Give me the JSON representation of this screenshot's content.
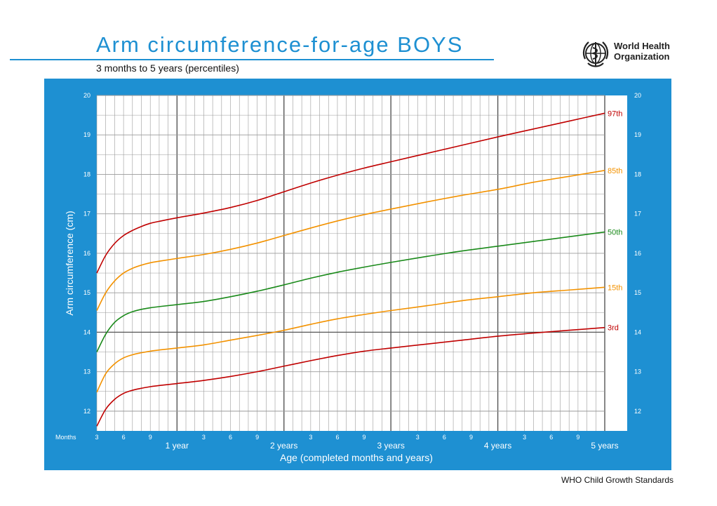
{
  "header": {
    "title": "Arm circumference-for-age  BOYS",
    "subtitle": "3 months to 5 years (percentiles)"
  },
  "logo": {
    "icon": "who-emblem-icon",
    "line1": "World Health",
    "line2": "Organization"
  },
  "footer": {
    "text": "WHO Child Growth Standards"
  },
  "colors": {
    "panel": "#1e90d2",
    "grid": "#9a9a9a",
    "grid_major": "#555555",
    "percentile_outer": "#c00000",
    "percentile_mid": "#f39200",
    "percentile_median": "#1a8a1a"
  },
  "chart_data": {
    "type": "line",
    "title": "Arm circumference-for-age  BOYS",
    "subtitle": "3 months to 5 years (percentiles)",
    "xlabel": "Age (completed months and years)",
    "ylabel": "Arm circumference (cm)",
    "xunit_label": "Months",
    "xlim": [
      3,
      60
    ],
    "ylim": [
      11.5,
      20
    ],
    "y_ticks": [
      12,
      13,
      14,
      15,
      16,
      17,
      18,
      19,
      20
    ],
    "x_month_ticks": [
      {
        "month": 3,
        "label": "3"
      },
      {
        "month": 6,
        "label": "6"
      },
      {
        "month": 9,
        "label": "9"
      },
      {
        "month": 15,
        "label": "3"
      },
      {
        "month": 18,
        "label": "6"
      },
      {
        "month": 21,
        "label": "9"
      },
      {
        "month": 27,
        "label": "3"
      },
      {
        "month": 30,
        "label": "6"
      },
      {
        "month": 33,
        "label": "9"
      },
      {
        "month": 39,
        "label": "3"
      },
      {
        "month": 42,
        "label": "6"
      },
      {
        "month": 45,
        "label": "9"
      },
      {
        "month": 51,
        "label": "3"
      },
      {
        "month": 54,
        "label": "6"
      },
      {
        "month": 57,
        "label": "9"
      }
    ],
    "x_year_ticks": [
      {
        "month": 12,
        "label": "1 year"
      },
      {
        "month": 24,
        "label": "2 years"
      },
      {
        "month": 36,
        "label": "3 years"
      },
      {
        "month": 48,
        "label": "4 years"
      },
      {
        "month": 60,
        "label": "5 years"
      }
    ],
    "grid": true,
    "x": [
      3,
      4,
      5,
      6,
      7,
      8,
      9,
      10,
      12,
      15,
      18,
      21,
      24,
      27,
      30,
      33,
      36,
      40,
      44,
      48,
      52,
      56,
      60
    ],
    "series": [
      {
        "name": "97th",
        "color": "#c00000",
        "values": [
          15.5,
          15.95,
          16.25,
          16.45,
          16.58,
          16.68,
          16.76,
          16.81,
          16.9,
          17.02,
          17.16,
          17.34,
          17.56,
          17.78,
          17.98,
          18.16,
          18.32,
          18.53,
          18.74,
          18.95,
          19.15,
          19.35,
          19.55
        ]
      },
      {
        "name": "85th",
        "color": "#f39200",
        "values": [
          14.55,
          15.0,
          15.3,
          15.5,
          15.62,
          15.7,
          15.76,
          15.8,
          15.87,
          15.97,
          16.1,
          16.26,
          16.45,
          16.64,
          16.82,
          16.98,
          17.12,
          17.3,
          17.47,
          17.62,
          17.8,
          17.95,
          18.1
        ]
      },
      {
        "name": "50th",
        "color": "#1a8a1a",
        "values": [
          13.5,
          13.95,
          14.25,
          14.42,
          14.52,
          14.58,
          14.62,
          14.65,
          14.7,
          14.78,
          14.9,
          15.04,
          15.2,
          15.37,
          15.52,
          15.65,
          15.77,
          15.92,
          16.06,
          16.18,
          16.3,
          16.42,
          16.54
        ]
      },
      {
        "name": "15th",
        "color": "#f39200",
        "values": [
          12.48,
          12.95,
          13.2,
          13.35,
          13.43,
          13.48,
          13.52,
          13.55,
          13.6,
          13.68,
          13.8,
          13.92,
          14.05,
          14.2,
          14.34,
          14.45,
          14.55,
          14.67,
          14.8,
          14.9,
          15.0,
          15.07,
          15.14
        ]
      },
      {
        "name": "3rd",
        "color": "#c00000",
        "values": [
          11.62,
          12.05,
          12.3,
          12.45,
          12.53,
          12.58,
          12.62,
          12.65,
          12.7,
          12.78,
          12.88,
          13.0,
          13.14,
          13.28,
          13.41,
          13.52,
          13.6,
          13.7,
          13.8,
          13.9,
          13.98,
          14.05,
          14.12
        ]
      }
    ]
  }
}
